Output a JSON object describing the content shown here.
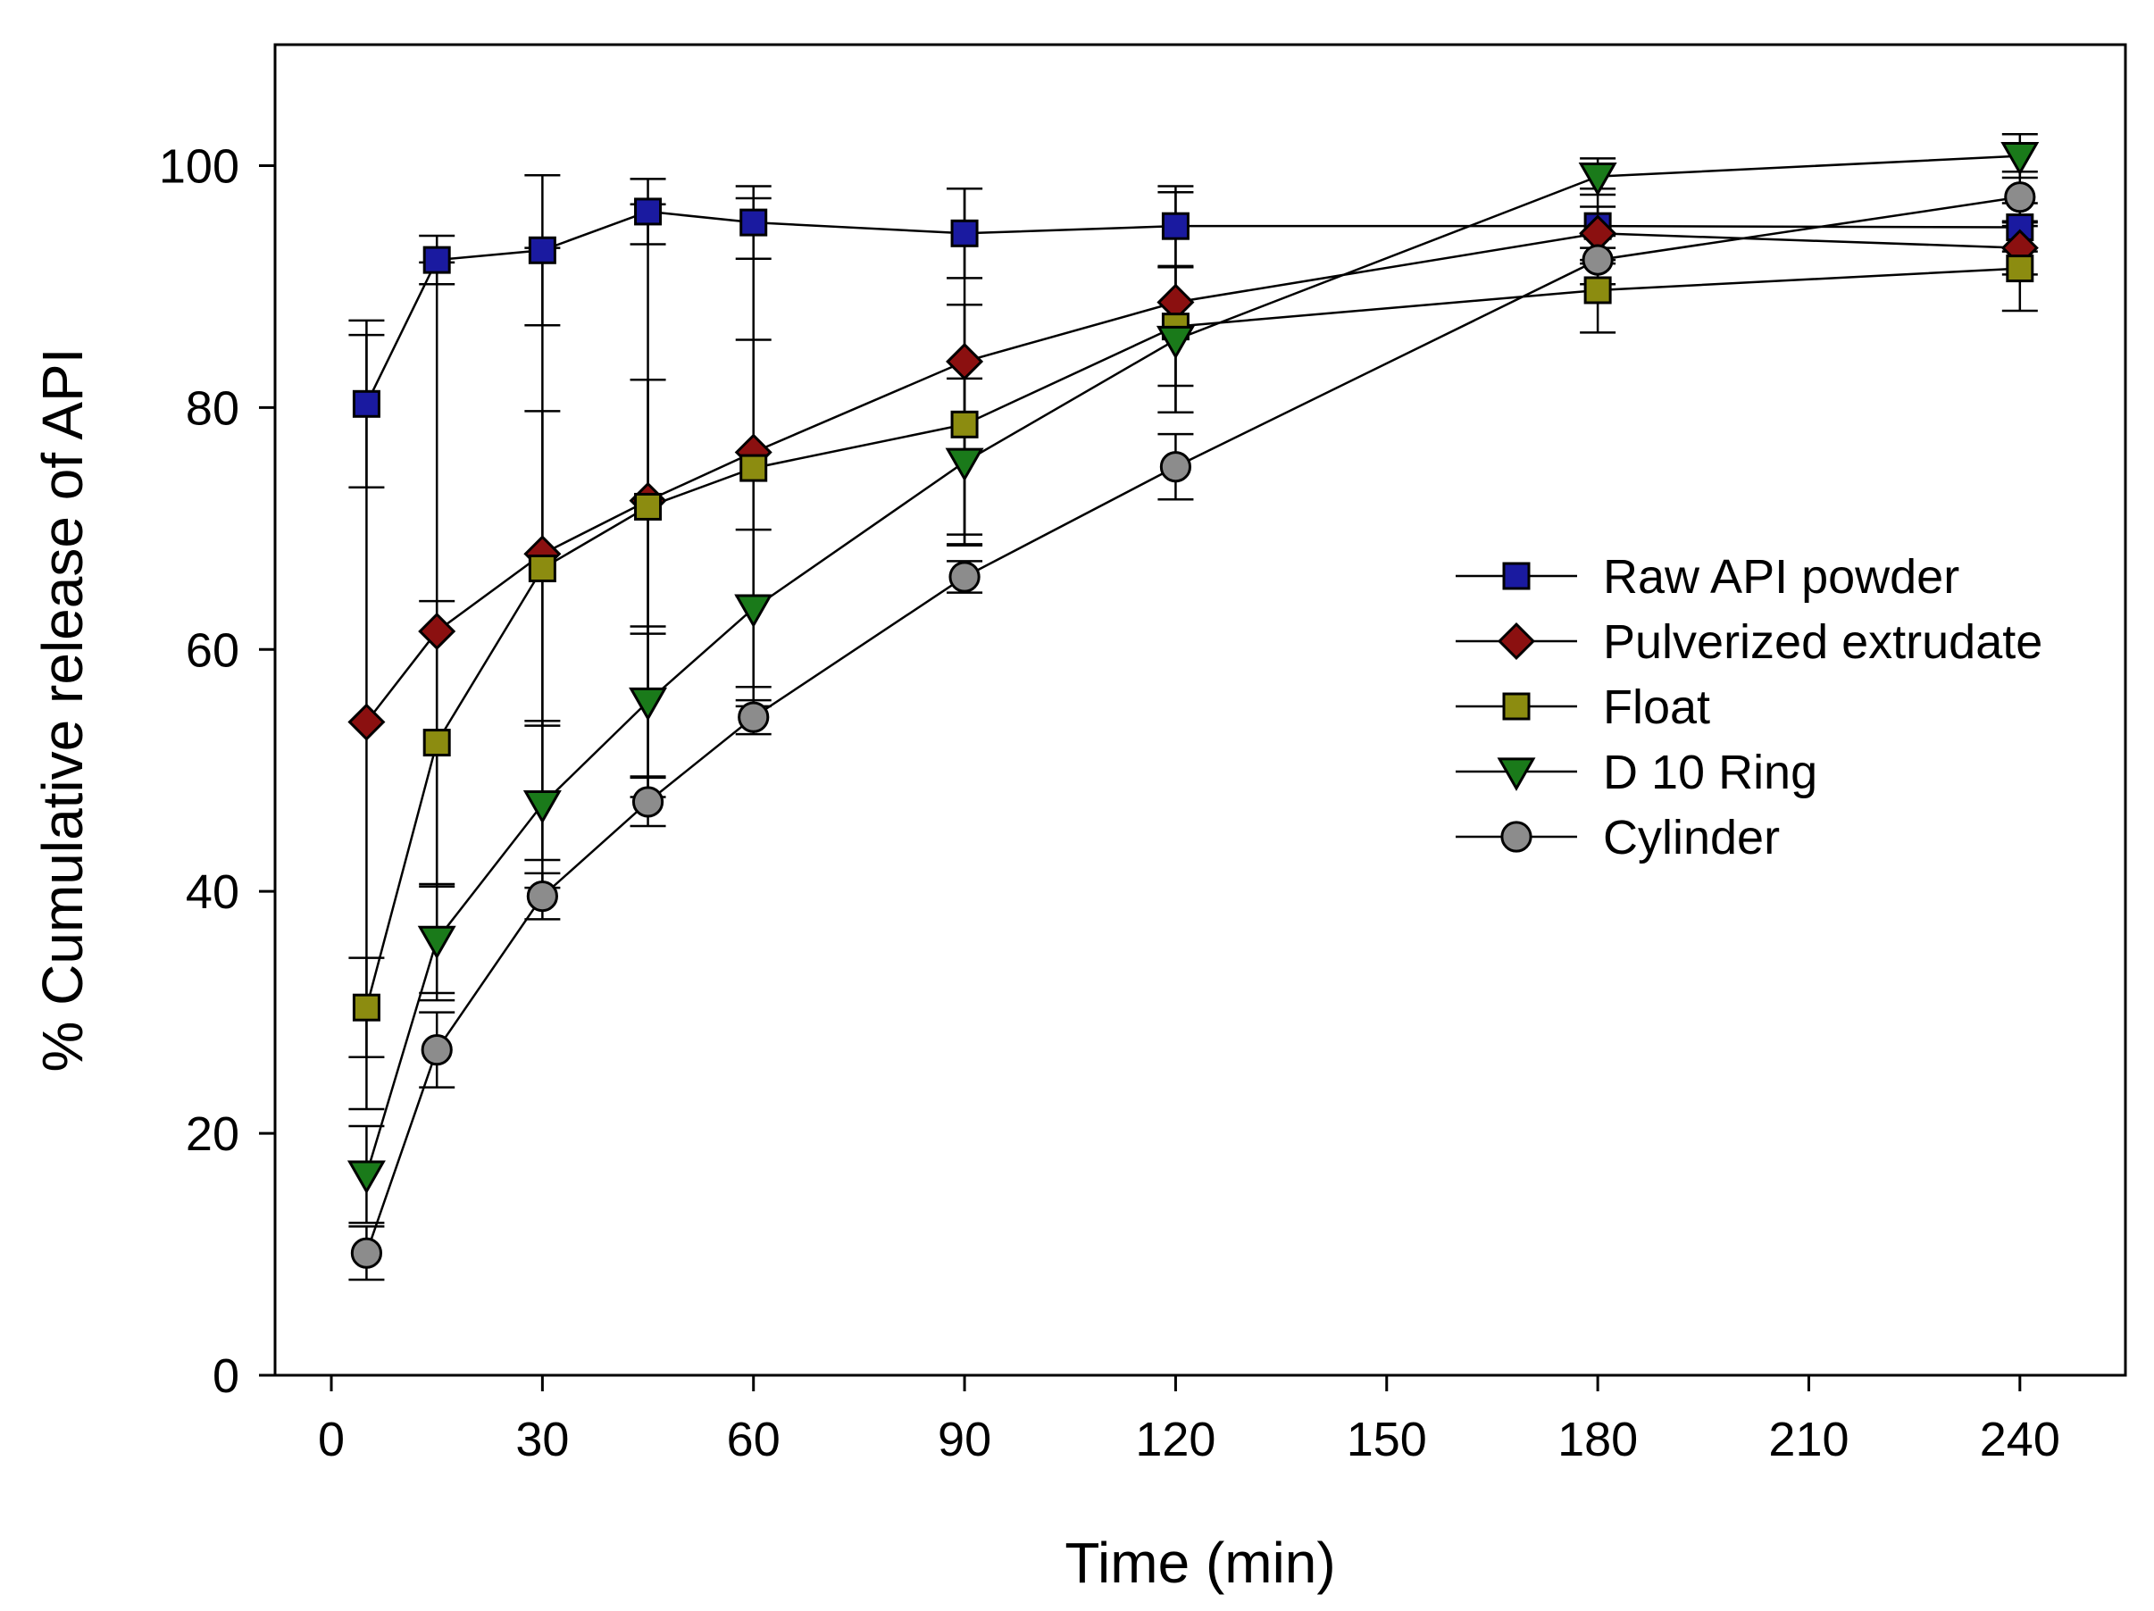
{
  "chart_data": {
    "type": "line",
    "title": "",
    "xlabel": "Time (min)",
    "ylabel": "% Cumulative release of API",
    "xlim": [
      -8,
      255
    ],
    "ylim": [
      0,
      110
    ],
    "xticks": [
      0,
      30,
      60,
      90,
      120,
      150,
      180,
      210,
      240
    ],
    "yticks": [
      0,
      20,
      40,
      60,
      80,
      100
    ],
    "grid": false,
    "legend_position": "center-right",
    "x": [
      5,
      15,
      30,
      45,
      60,
      90,
      120,
      180,
      240
    ],
    "series": [
      {
        "name": "Raw API powder",
        "marker": "square",
        "color": "#1a1aa0",
        "values": [
          80.3,
          92.2,
          93.0,
          96.2,
          95.3,
          94.4,
          95.0,
          95.0,
          94.9
        ],
        "errors": [
          6.9,
          2.0,
          6.2,
          2.7,
          3.0,
          3.7,
          3.3,
          3.1,
          2.0
        ]
      },
      {
        "name": "Pulverized extrudate",
        "marker": "diamond",
        "color": "#8b1010",
        "values": [
          54.0,
          61.5,
          67.9,
          72.3,
          76.3,
          83.8,
          88.7,
          94.4,
          93.2
        ],
        "errors": [
          32.0,
          30.5,
          25.3,
          24.5,
          21.0,
          14.3,
          9.1,
          2.2,
          2.2
        ]
      },
      {
        "name": "Float",
        "marker": "square",
        "color": "#8c8c10",
        "values": [
          30.4,
          52.3,
          66.7,
          71.8,
          75.0,
          78.6,
          86.7,
          89.7,
          91.5
        ],
        "errors": [
          4.1,
          11.7,
          13.0,
          10.5,
          10.6,
          9.9,
          4.9,
          3.5,
          3.5
        ]
      },
      {
        "name": "D 10 Ring",
        "marker": "triangle-down",
        "color": "#1a7a1a",
        "values": [
          16.6,
          36.0,
          47.2,
          55.7,
          63.4,
          75.5,
          85.6,
          99.1,
          100.8
        ],
        "errors": [
          4.0,
          4.4,
          6.9,
          6.2,
          6.5,
          6.9,
          6.0,
          1.5,
          1.8
        ]
      },
      {
        "name": "Cylinder",
        "marker": "circle",
        "color": "#8c8c8c",
        "values": [
          10.1,
          26.9,
          39.6,
          47.4,
          54.4,
          66.0,
          75.1,
          92.2,
          97.4
        ],
        "errors": [
          2.2,
          3.1,
          1.9,
          2.0,
          1.4,
          1.3,
          2.7,
          2.0,
          2.1
        ]
      }
    ]
  }
}
